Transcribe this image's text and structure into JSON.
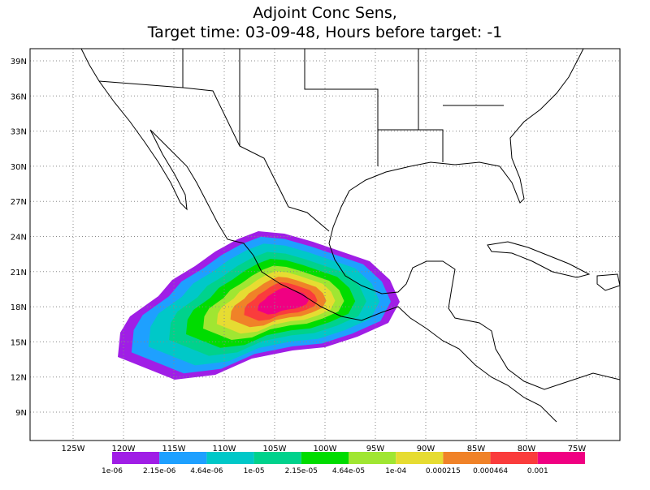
{
  "title": {
    "line1": "Adjoint Conc Sens,",
    "line2": "Target time: 03-09-48, Hours before target: -1"
  },
  "map": {
    "lat_ticks": [
      {
        "value": 9,
        "label": "9N"
      },
      {
        "value": 12,
        "label": "12N"
      },
      {
        "value": 15,
        "label": "15N"
      },
      {
        "value": 18,
        "label": "18N"
      },
      {
        "value": 21,
        "label": "21N"
      },
      {
        "value": 24,
        "label": "24N"
      },
      {
        "value": 27,
        "label": "27N"
      },
      {
        "value": 30,
        "label": "30N"
      },
      {
        "value": 33,
        "label": "33N"
      },
      {
        "value": 36,
        "label": "36N"
      },
      {
        "value": 39,
        "label": "39N"
      }
    ],
    "lon_ticks": [
      {
        "value": -125,
        "label": "125W"
      },
      {
        "value": -120,
        "label": "120W"
      },
      {
        "value": -115,
        "label": "115W"
      },
      {
        "value": -110,
        "label": "110W"
      },
      {
        "value": -105,
        "label": "105W"
      },
      {
        "value": -100,
        "label": "100W"
      },
      {
        "value": -95,
        "label": "95W"
      },
      {
        "value": -90,
        "label": "90W"
      },
      {
        "value": -85,
        "label": "85W"
      },
      {
        "value": -80,
        "label": "80W"
      },
      {
        "value": -75,
        "label": "75W"
      }
    ]
  },
  "colorbar": {
    "labels": [
      "1e-06",
      "2.15e-06",
      "4.64e-06",
      "1e-05",
      "2.15e-05",
      "4.64e-05",
      "1e-04",
      "0.000215",
      "0.000464",
      "0.001"
    ],
    "colors": [
      "#a01ee6",
      "#1ea0ff",
      "#00c8c8",
      "#00d28c",
      "#00dc00",
      "#a0e632",
      "#e6dc32",
      "#f08228",
      "#fa3c3c",
      "#f00082"
    ]
  }
}
